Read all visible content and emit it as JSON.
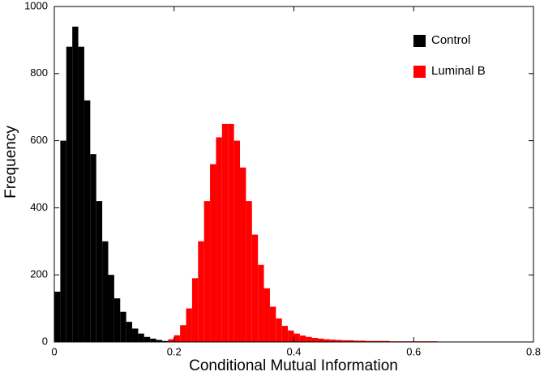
{
  "chart_data": {
    "type": "histogram",
    "xlabel": "Conditional Mutual Information",
    "ylabel": "Frequency",
    "bins": [
      0,
      0.01,
      0.02,
      0.03,
      0.04,
      0.05,
      0.06,
      0.07,
      0.08,
      0.09,
      0.1,
      0.11,
      0.12,
      0.13,
      0.14,
      0.15,
      0.16,
      0.17,
      0.18,
      0.19,
      0.2,
      0.21,
      0.22,
      0.23,
      0.24,
      0.25,
      0.26,
      0.27,
      0.28,
      0.29,
      0.3,
      0.31,
      0.32,
      0.33,
      0.34,
      0.35,
      0.36,
      0.37,
      0.38,
      0.39,
      0.4,
      0.41,
      0.42,
      0.43,
      0.44,
      0.45,
      0.46,
      0.47,
      0.48,
      0.49,
      0.5,
      0.51,
      0.52,
      0.53,
      0.54,
      0.55,
      0.56,
      0.57,
      0.58,
      0.59,
      0.6,
      0.61,
      0.62,
      0.63,
      0.64,
      0.65,
      0.66,
      0.67,
      0.68,
      0.69,
      0.7,
      0.71,
      0.72,
      0.73,
      0.74,
      0.75,
      0.76,
      0.77,
      0.78,
      0.79,
      0.8
    ],
    "series": [
      {
        "name": "Control",
        "color": "#000000",
        "values": [
          150,
          600,
          880,
          940,
          880,
          720,
          560,
          420,
          300,
          200,
          130,
          90,
          60,
          40,
          25,
          15,
          10,
          6,
          3,
          1,
          0,
          0,
          0,
          0,
          0,
          0,
          0,
          0,
          0,
          0,
          0,
          0,
          0,
          0,
          0,
          0,
          0,
          0,
          0,
          0,
          0,
          0,
          0,
          0,
          0,
          0,
          0,
          0,
          0,
          0,
          0,
          0,
          0,
          0,
          0,
          0,
          0,
          0,
          0,
          0,
          0,
          0,
          0,
          0,
          0,
          0,
          0,
          0,
          0,
          0,
          0,
          0,
          0,
          0,
          0,
          0,
          0,
          0,
          0,
          0
        ]
      },
      {
        "name": "Luminal B",
        "color": "#ff0000",
        "values": [
          0,
          0,
          0,
          0,
          0,
          0,
          0,
          0,
          0,
          0,
          0,
          0,
          0,
          0,
          0,
          0,
          0,
          0,
          2,
          8,
          20,
          50,
          100,
          190,
          300,
          420,
          530,
          610,
          650,
          650,
          600,
          520,
          420,
          320,
          230,
          160,
          105,
          70,
          48,
          34,
          25,
          19,
          15,
          12,
          10,
          8,
          7,
          6,
          5,
          5,
          4,
          4,
          3,
          3,
          3,
          3,
          2,
          2,
          2,
          2,
          2,
          2,
          2,
          2,
          1,
          1,
          1,
          1,
          1,
          1,
          1,
          1,
          1,
          1,
          1,
          1,
          1,
          1,
          0,
          0
        ]
      }
    ],
    "xlim": [
      0,
      0.8
    ],
    "ylim": [
      0,
      1000
    ],
    "xticks": [
      0,
      0.2,
      0.4,
      0.6,
      0.8
    ],
    "yticks": [
      0,
      200,
      400,
      600,
      800,
      1000
    ],
    "legend": "upper right"
  }
}
